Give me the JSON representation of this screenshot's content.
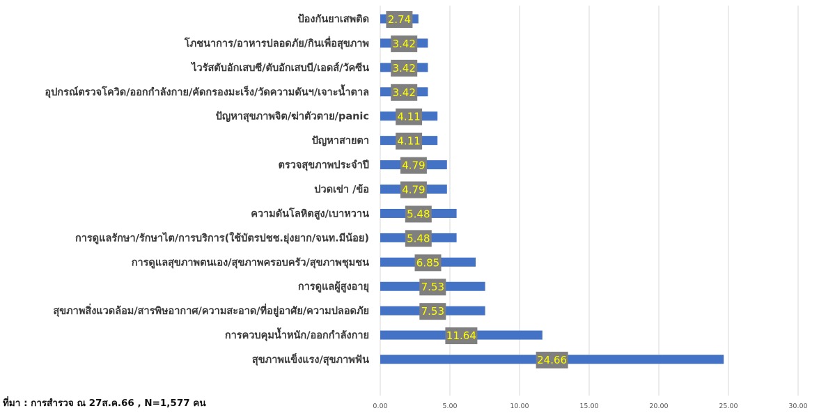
{
  "source_note": "ที่มา : การสำรวจ ณ 27ส.ค.66  , N=1,577 คน",
  "colors": {
    "bar": "#4472C4",
    "label_box": "#7F7F7F",
    "label_text": "#FFFF00",
    "grid": "#D9D9D9"
  },
  "chart_data": {
    "type": "bar",
    "orientation": "horizontal",
    "categories": [
      "ป้องกันยาเสพติด",
      "โภชนาการ/อาหารปลอดภัย/กินเพื่อสุขภาพ",
      "ไวรัสตับอักเสบซี/ตับอักเสบบี/เอดส์/วัคซีน",
      "อุปกรณ์ตรวจโควิด/ออกกำลังกาย/คัดกรองมะเร็ง/วัดความดันฯ/เจาะน้ำตาล",
      "ปัญหาสุขภาพจิต/ฆ่าตัวตาย/panic",
      "ปัญหาสายตา",
      "ตรวจสุขภาพประจำปี",
      "ปวดเข่า /ข้อ",
      "ความดันโลหิตสูง/เบาหวาน",
      "การดูแลรักษา/รักษาไต/การบริการ(ใช้บัตรปชช.ยุ่งยาก/จนท.มีน้อย)",
      "การดูแลสุขภาพตนเอง/สุขภาพครอบครัว/สุขภาพชุมชน",
      "การดูแลผู้สูงอายุ",
      "สุขภาพสิ่งแวดล้อม/สารพิษอากาศ/ความสะอาด/ที่อยู่อาศัย/ความปลอดภัย",
      "การควบคุมน้ำหนัก/ออกกำลังกาย",
      "สุขภาพแข็งแรง/สุขภาพฟัน"
    ],
    "values": [
      2.74,
      3.42,
      3.42,
      3.42,
      4.11,
      4.11,
      4.79,
      4.79,
      5.48,
      5.48,
      6.85,
      7.53,
      7.53,
      11.64,
      24.66
    ],
    "value_labels": [
      "2.74",
      "3.42",
      "3.42",
      "3.42",
      "4.11",
      "4.11",
      "4.79",
      "4.79",
      "5.48",
      "5.48",
      "6.85",
      "7.53",
      "7.53",
      "11.64",
      "24.66"
    ],
    "xlim": [
      0,
      30
    ],
    "xticks": [
      0,
      5,
      10,
      15,
      20,
      25,
      30
    ],
    "xtick_labels": [
      "0.00",
      "5.00",
      "10.00",
      "15.00",
      "20.00",
      "25.00",
      "30.00"
    ],
    "grid": true,
    "legend": false
  }
}
